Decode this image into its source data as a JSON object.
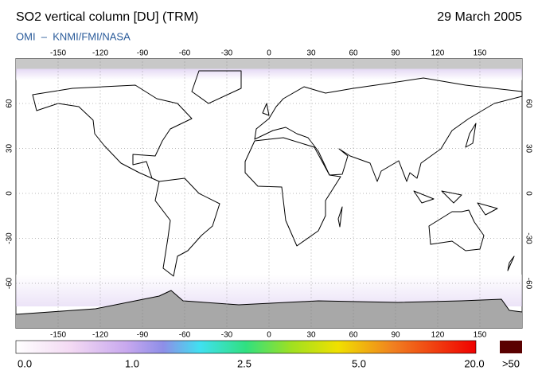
{
  "header": {
    "title": "SO2 vertical column [DU] (TRM)",
    "date": "29 March 2005",
    "source": "OMI  –  KNMI/FMI/NASA"
  },
  "map": {
    "lon_range": [
      -180,
      180
    ],
    "lat_range": [
      -90,
      90
    ],
    "lon_ticks": [
      -150,
      -120,
      -90,
      -60,
      -30,
      0,
      30,
      60,
      90,
      120,
      150
    ],
    "lat_ticks": [
      60,
      30,
      0,
      -30,
      -60
    ]
  },
  "colorbar": {
    "labels": [
      "0.0",
      "1.0",
      "2.5",
      "5.0",
      "20.0",
      ">50"
    ]
  }
}
